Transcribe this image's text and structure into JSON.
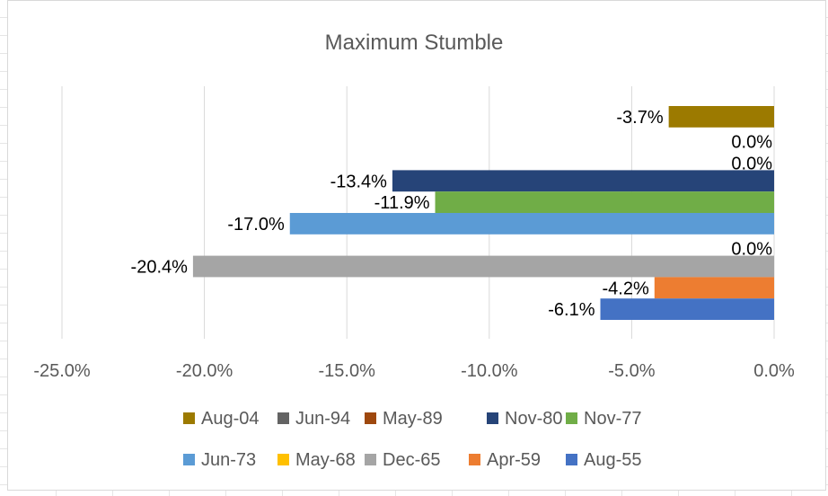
{
  "chart_data": {
    "type": "bar",
    "orientation": "horizontal",
    "title": "Maximum Stumble",
    "xlim": [
      -25,
      0
    ],
    "x_ticks": [
      -25,
      -20,
      -15,
      -10,
      -5,
      0
    ],
    "tick_labels": [
      "-25.0%",
      "-20.0%",
      "-15.0%",
      "-10.0%",
      "-5.0%",
      "0.0%"
    ],
    "grid": true,
    "legend_position": "bottom",
    "series": [
      {
        "name": "Aug-04",
        "value": -3.7,
        "label": "-3.7%",
        "color": "#9C7A00"
      },
      {
        "name": "Jun-94",
        "value": 0.0,
        "label": "0.0%",
        "color": "#636363"
      },
      {
        "name": "May-89",
        "value": 0.0,
        "label": "0.0%",
        "color": "#9E480E"
      },
      {
        "name": "Nov-80",
        "value": -13.4,
        "label": "-13.4%",
        "color": "#264478"
      },
      {
        "name": "Nov-77",
        "value": -11.9,
        "label": "-11.9%",
        "color": "#70AD47"
      },
      {
        "name": "Jun-73",
        "value": -17.0,
        "label": "-17.0%",
        "color": "#5B9BD5"
      },
      {
        "name": "May-68",
        "value": 0.0,
        "label": "0.0%",
        "color": "#FFC000"
      },
      {
        "name": "Dec-65",
        "value": -20.4,
        "label": "-20.4%",
        "color": "#A5A5A5"
      },
      {
        "name": "Apr-59",
        "value": -4.2,
        "label": "-4.2%",
        "color": "#ED7D31"
      },
      {
        "name": "Aug-55",
        "value": -6.1,
        "label": "-6.1%",
        "color": "#4472C4"
      }
    ]
  }
}
